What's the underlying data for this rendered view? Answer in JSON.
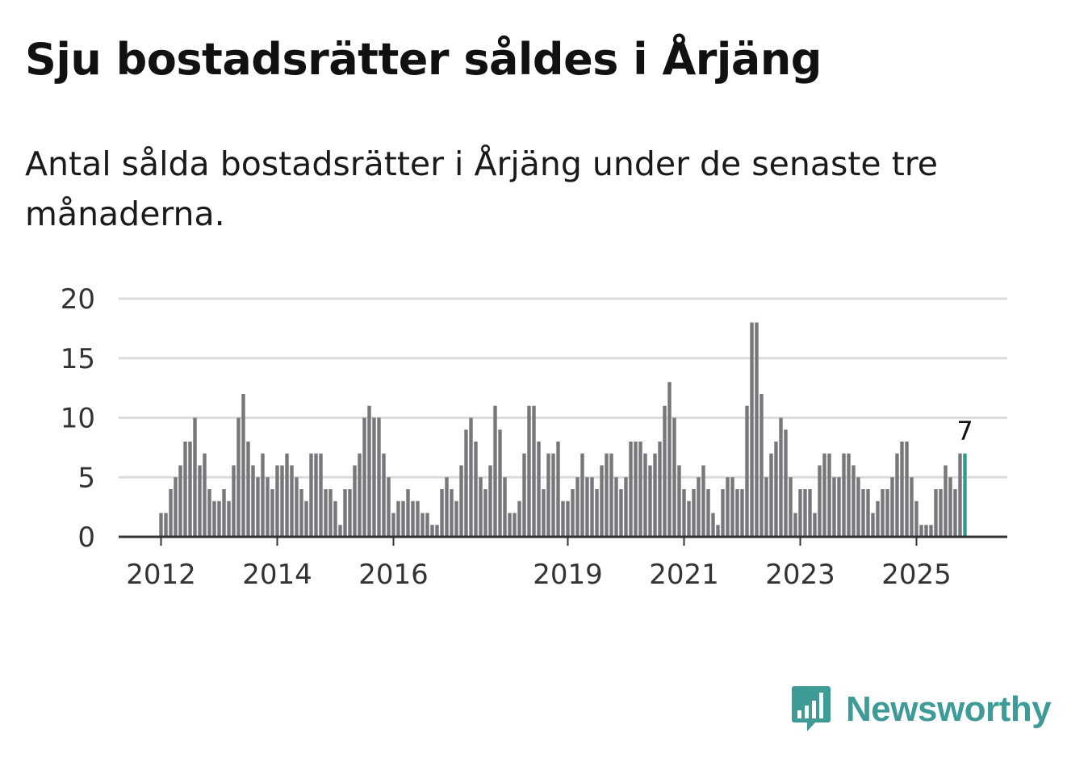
{
  "header": {
    "title": "Sju bostadsrätter såldes i Årjäng",
    "subtitle": "Antal sålda bostadsrätter i Årjäng under de senaste tre månaderna."
  },
  "brand": {
    "name": "Newsworthy",
    "color": "#3f9b96",
    "icon": "newsworthy-bar-chart-icon"
  },
  "chart_data": {
    "type": "bar",
    "title": "Sju bostadsrätter såldes i Årjäng",
    "subtitle": "Antal sålda bostadsrätter i Årjäng under de senaste tre månaderna.",
    "xlabel": "",
    "ylabel": "",
    "ylim": [
      0,
      20
    ],
    "yticks": [
      0,
      5,
      10,
      15,
      20
    ],
    "grid": true,
    "start_period": "2012-01",
    "x_tick_labels": [
      {
        "label": "2012",
        "index": 0
      },
      {
        "label": "2014",
        "index": 24
      },
      {
        "label": "2016",
        "index": 48
      },
      {
        "label": "2019",
        "index": 84
      },
      {
        "label": "2021",
        "index": 108
      },
      {
        "label": "2023",
        "index": 132
      },
      {
        "label": "2025",
        "index": 156
      }
    ],
    "values": [
      2,
      2,
      4,
      5,
      6,
      8,
      8,
      10,
      6,
      7,
      4,
      3,
      3,
      4,
      3,
      6,
      10,
      12,
      8,
      6,
      5,
      7,
      5,
      4,
      6,
      6,
      7,
      6,
      5,
      4,
      3,
      7,
      7,
      7,
      4,
      4,
      3,
      1,
      4,
      4,
      6,
      7,
      10,
      11,
      10,
      10,
      7,
      5,
      2,
      3,
      3,
      4,
      3,
      3,
      2,
      2,
      1,
      1,
      4,
      5,
      4,
      3,
      6,
      9,
      10,
      8,
      5,
      4,
      6,
      11,
      9,
      5,
      2,
      2,
      3,
      7,
      11,
      11,
      8,
      4,
      7,
      7,
      8,
      3,
      3,
      4,
      5,
      7,
      5,
      5,
      4,
      6,
      7,
      7,
      5,
      4,
      5,
      8,
      8,
      8,
      7,
      6,
      7,
      8,
      11,
      13,
      10,
      6,
      4,
      3,
      4,
      5,
      6,
      4,
      2,
      1,
      4,
      5,
      5,
      4,
      4,
      11,
      18,
      18,
      12,
      5,
      7,
      8,
      10,
      9,
      5,
      2,
      4,
      4,
      4,
      2,
      6,
      7,
      7,
      5,
      5,
      7,
      7,
      6,
      5,
      4,
      4,
      2,
      3,
      4,
      4,
      5,
      7,
      8,
      8,
      5,
      3,
      1,
      1,
      1,
      4,
      4,
      6,
      5,
      4,
      7,
      7
    ],
    "series_color": "#77767b",
    "highlight_color": "#2a9d8f",
    "highlight_label": "7"
  }
}
